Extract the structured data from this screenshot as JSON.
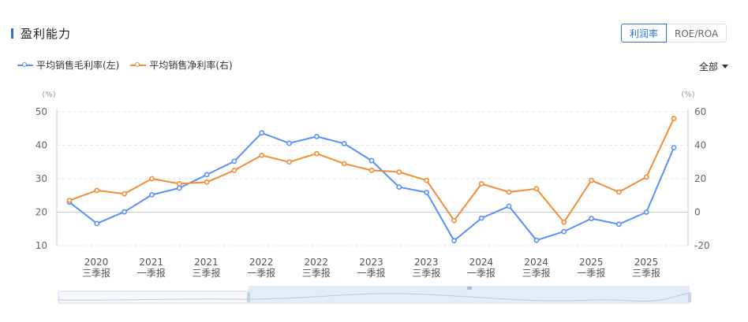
{
  "header": {
    "title": "盈利能力"
  },
  "tabs": [
    {
      "label": "利润率",
      "active": true
    },
    {
      "label": "ROE/ROA",
      "active": false
    }
  ],
  "range_select": {
    "value": "全部"
  },
  "colors": {
    "series1": "#5b8ff9",
    "series2": "#f28c36",
    "accent": "#2f6fd1"
  },
  "chart_data": {
    "type": "line",
    "y_unit_left": "(%)",
    "y_unit_right": "(%)",
    "ylim_left": [
      10,
      50
    ],
    "ylim_right": [
      -20,
      60
    ],
    "yticks_left": [
      "50",
      "40",
      "30",
      "20",
      "10"
    ],
    "yticks_right": [
      "60",
      "40",
      "20",
      "0",
      "-20"
    ],
    "grid": "horizontal-dashed",
    "legend_position": "top-left",
    "x_labels": [
      [
        "2020",
        "三季报"
      ],
      [
        "2021",
        "一季报"
      ],
      [
        "2021",
        "三季报"
      ],
      [
        "2022",
        "一季报"
      ],
      [
        "2022",
        "三季报"
      ],
      [
        "2023",
        "一季报"
      ],
      [
        "2023",
        "三季报"
      ],
      [
        "2024",
        "一季报"
      ],
      [
        "2024",
        "三季报"
      ],
      [
        "2025",
        "一季报"
      ],
      [
        "2025",
        "三季报"
      ]
    ],
    "series": [
      {
        "name": "平均销售毛利率(左)",
        "axis": "left",
        "values": [
          23.0,
          16.6,
          20.1,
          25.2,
          27.2,
          31.2,
          35.2,
          43.7,
          40.6,
          42.6,
          40.5,
          35.4,
          27.5,
          25.9,
          11.5,
          18.2,
          21.8,
          11.6,
          14.2,
          18.1,
          16.4,
          20.0,
          39.3
        ]
      },
      {
        "name": "平均销售净利率(右)",
        "axis": "right",
        "values": [
          7.0,
          13.0,
          11.0,
          20.0,
          17.0,
          18.0,
          25.0,
          34.0,
          30.0,
          35.0,
          29.0,
          25.0,
          24.0,
          19.0,
          -5.0,
          17.0,
          12.0,
          14.0,
          -6.0,
          19.0,
          12.0,
          21.0,
          56.0
        ]
      }
    ]
  }
}
